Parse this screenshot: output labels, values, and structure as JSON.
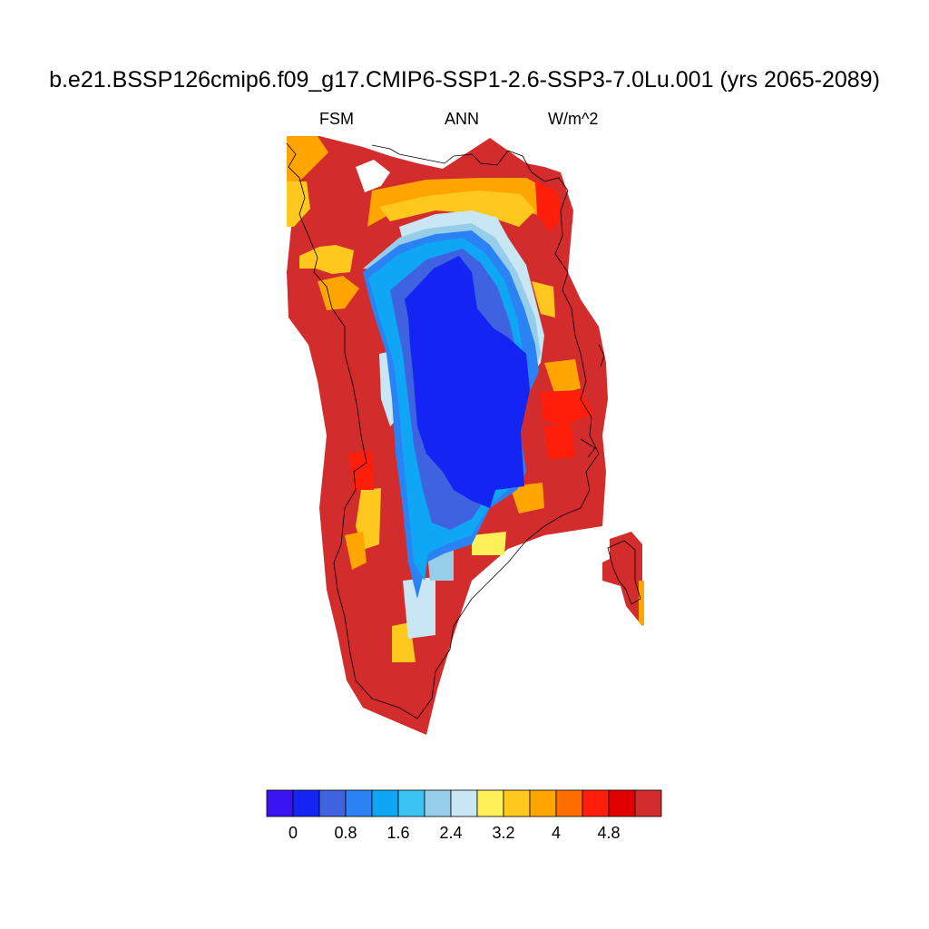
{
  "title": "b.e21.BSSP126cmip6.f09_g17.CMIP6-SSP1-2.6-SSP3-7.0Lu.001 (yrs 2065-2089)",
  "variable": "FSM",
  "season": "ANN",
  "units": "W/m^2",
  "colorbar": {
    "colors": [
      "#3a13f2",
      "#1424f2",
      "#3e62e0",
      "#2a82f5",
      "#0ea6f5",
      "#3bc3f2",
      "#96ceea",
      "#c8e6f4",
      "#fff05a",
      "#ffc81e",
      "#ffa500",
      "#ff6e00",
      "#ff1e0a",
      "#e00000",
      "#d22c2c"
    ],
    "tick_labels": [
      "0",
      "0.8",
      "1.6",
      "2.4",
      "3.2",
      "4",
      "4.8"
    ]
  },
  "map": {
    "region": "Greenland",
    "palette_index_colors": [
      "#3a13f2",
      "#1424f2",
      "#3e62e0",
      "#2a82f5",
      "#0ea6f5",
      "#3bc3f2",
      "#96ceea",
      "#c8e6f4",
      "#fff05a",
      "#ffc81e",
      "#ffa500",
      "#ff6e00",
      "#ff1e0a",
      "#e00000",
      "#d22c2c"
    ]
  }
}
